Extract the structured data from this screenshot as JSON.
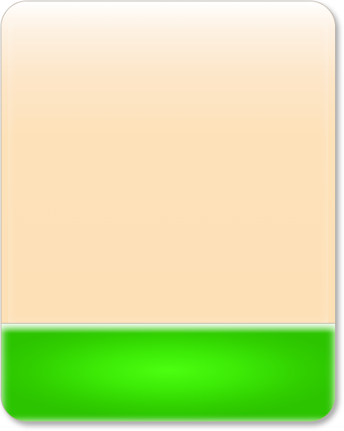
{
  "panel": {
    "body_color": "#fde0b6",
    "footer_color": "#33d100",
    "border_color": "#b9b2aa"
  }
}
